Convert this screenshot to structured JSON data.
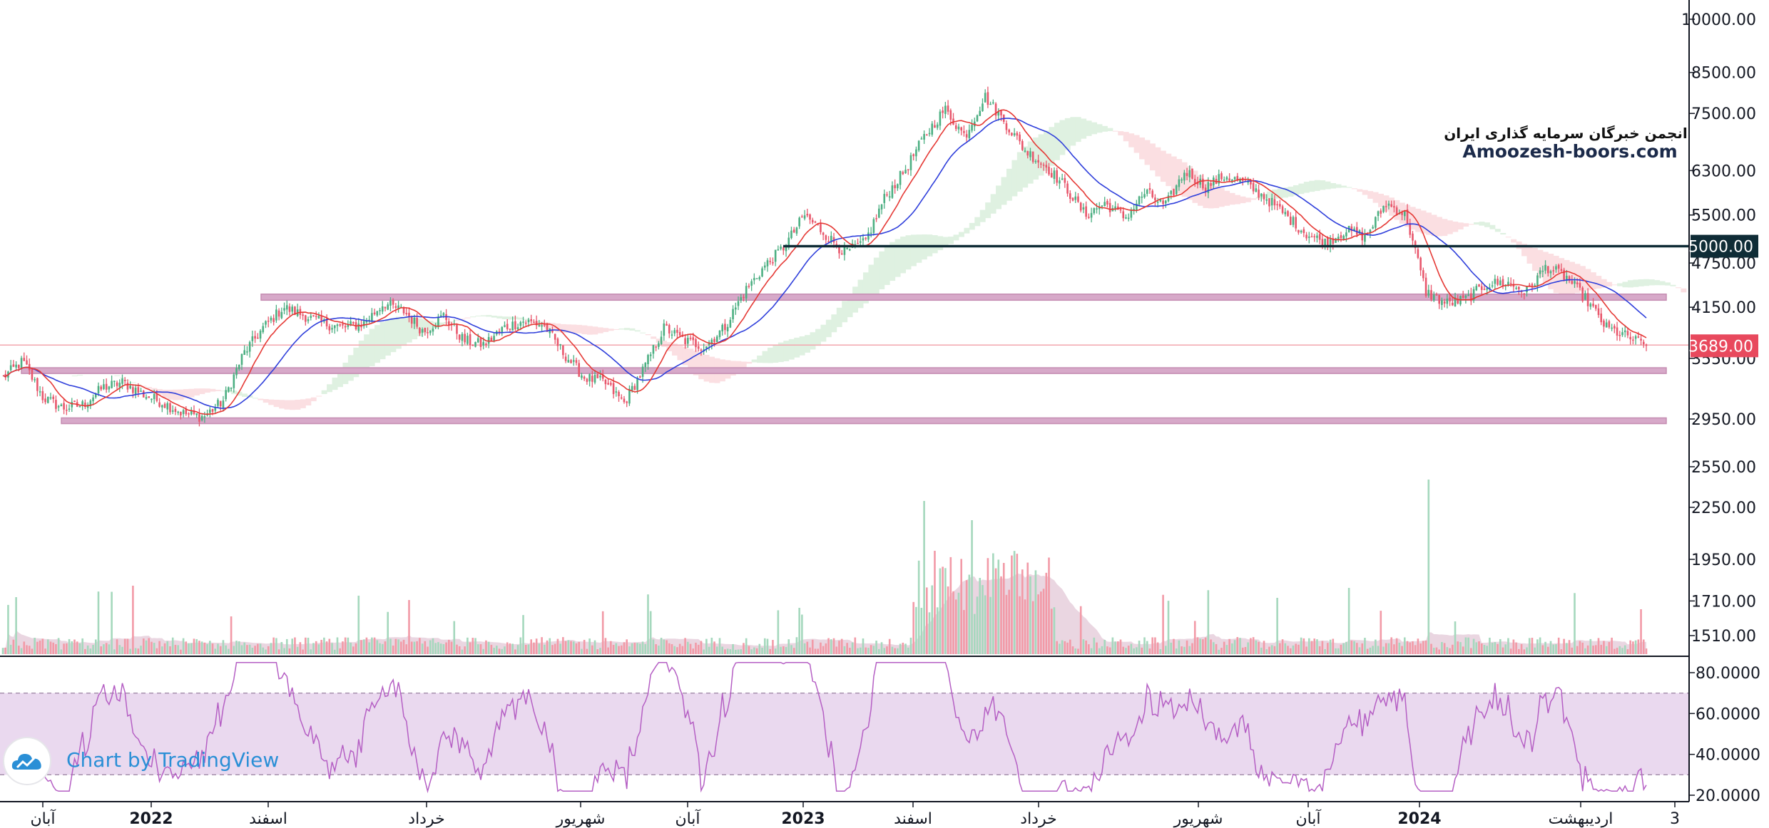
{
  "watermark": {
    "line1": "انجمن خبرگان سرمایه گذاری ایران",
    "line2": "Amoozesh-boors.com"
  },
  "branding": {
    "text": "Chart by TradingView",
    "icon": "tradingview-cloud-icon"
  },
  "colors": {
    "up": "#4caf82",
    "down": "#e8576c",
    "ma_fast": "#e53935",
    "ma_slow": "#2f3fdb",
    "rsi": "#b55fc4",
    "rsi_band": "#ead9ef",
    "zone": "#d7a9c9",
    "resistance": "#0f2c36",
    "cloud_up": "#dff1e1",
    "cloud_down": "#fbdfe2"
  },
  "chart_data": {
    "type": "candlestick",
    "price_axis_labels": [
      "10000.00",
      "8500.00",
      "7500.00",
      "6300.00",
      "5500.00",
      "4750.00",
      "4150.00",
      "3550.00",
      "2950.00",
      "2550.00",
      "2250.00",
      "1950.00",
      "1710.00",
      "1510.00"
    ],
    "price_scale": "log",
    "rsi_axis_labels": [
      "80.0000",
      "60.0000",
      "40.0000",
      "20.0000"
    ],
    "rsi_levels": [
      70,
      30
    ],
    "time_axis_labels": [
      {
        "label": "آبان",
        "bold": false
      },
      {
        "label": "2022",
        "bold": true
      },
      {
        "label": "اسفند",
        "bold": false
      },
      {
        "label": "خرداد",
        "bold": false
      },
      {
        "label": "شهریور",
        "bold": false
      },
      {
        "label": "آبان",
        "bold": false
      },
      {
        "label": "2023",
        "bold": true
      },
      {
        "label": "اسفند",
        "bold": false
      },
      {
        "label": "خرداد",
        "bold": false
      },
      {
        "label": "شهریور",
        "bold": false
      },
      {
        "label": "آبان",
        "bold": false
      },
      {
        "label": "2024",
        "bold": true
      },
      {
        "label": "اردیبهشت",
        "bold": false
      },
      {
        "label": "3",
        "bold": false
      }
    ],
    "horizontal_level": {
      "value": 5000,
      "label": "5000.00"
    },
    "last_price": {
      "value": 3689,
      "label": "3689.00"
    },
    "support_zones": [
      {
        "low": 4240,
        "high": 4320
      },
      {
        "low": 3390,
        "high": 3450
      },
      {
        "low": 2910,
        "high": 2960
      }
    ],
    "close_path": [
      3350,
      3520,
      3150,
      3050,
      3080,
      3250,
      3300,
      3180,
      3100,
      3000,
      2970,
      3120,
      3600,
      3900,
      4150,
      4050,
      3950,
      3900,
      3950,
      4200,
      4100,
      3850,
      4050,
      3750,
      3700,
      3900,
      3980,
      3930,
      3600,
      3350,
      3300,
      3100,
      3450,
      3900,
      3750,
      3680,
      3900,
      4350,
      4700,
      5000,
      5500,
      5200,
      4900,
      5050,
      5800,
      6300,
      7000,
      7600,
      7000,
      7900,
      7300,
      6700,
      6400,
      6000,
      5500,
      5700,
      5450,
      5900,
      5650,
      6300,
      6000,
      6200,
      6050,
      5800,
      5500,
      5200,
      5050,
      5250,
      5150,
      5700,
      5500,
      4350,
      4200,
      4250,
      4450,
      4480,
      4350,
      4700,
      4550,
      4250,
      3900,
      3800,
      3689
    ]
  }
}
